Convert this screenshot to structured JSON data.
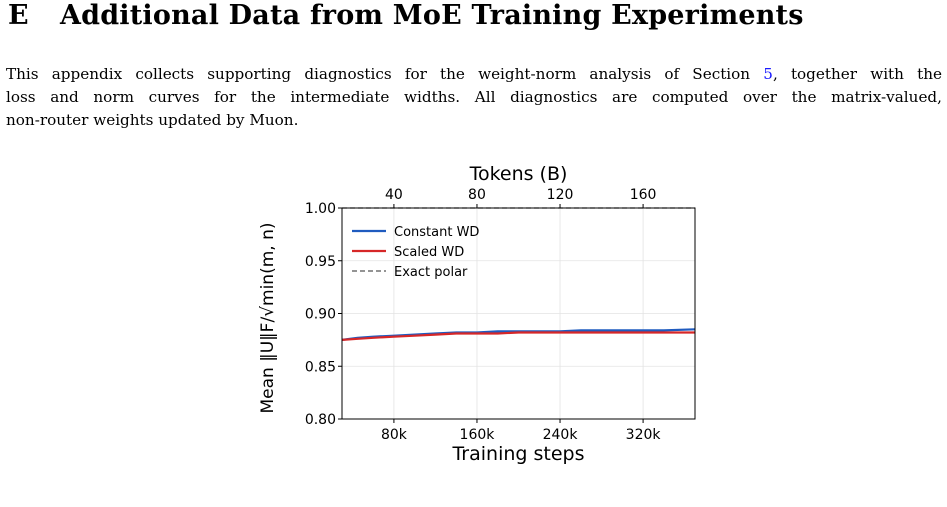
{
  "section": {
    "number": "E",
    "title": "Additional Data from MoE Training Experiments"
  },
  "paragraph": {
    "line1_pre": "This appendix collects supporting diagnostics for the weight-norm analysis of Section ",
    "section_ref": "5",
    "line1_post": ", together with the",
    "line2": "loss and norm curves for the intermediate widths.  All diagnostics are computed over the matrix-valued,",
    "line3": "non-router weights updated by Muon."
  },
  "chart_data": {
    "type": "line",
    "top_axis_label": "Tokens (B)",
    "top_ticks": [
      "40",
      "80",
      "120",
      "160"
    ],
    "xlabel": "Training steps",
    "x_tick_labels": [
      "80k",
      "160k",
      "240k",
      "320k"
    ],
    "x_ticks": [
      80000,
      160000,
      240000,
      320000
    ],
    "xlim": [
      30000,
      370000
    ],
    "ylabel": "Mean ‖U‖F/√min(m, n)",
    "y_tick_labels": [
      "1.00",
      "0.95",
      "0.90",
      "0.85",
      "0.80"
    ],
    "y_ticks": [
      1.0,
      0.95,
      0.9,
      0.85,
      0.8
    ],
    "ylim": [
      0.8,
      1.0
    ],
    "grid": true,
    "legend_position": "upper-left",
    "series": [
      {
        "name": "Constant WD",
        "color": "#1f5bbf",
        "style": "solid",
        "x": [
          30000,
          45000,
          60000,
          80000,
          100000,
          120000,
          140000,
          160000,
          180000,
          200000,
          220000,
          240000,
          260000,
          280000,
          300000,
          320000,
          340000,
          370000
        ],
        "y": [
          0.875,
          0.877,
          0.878,
          0.879,
          0.88,
          0.881,
          0.882,
          0.882,
          0.883,
          0.883,
          0.883,
          0.883,
          0.884,
          0.884,
          0.884,
          0.884,
          0.884,
          0.885
        ]
      },
      {
        "name": "Scaled WD",
        "color": "#d62728",
        "style": "solid",
        "x": [
          30000,
          45000,
          60000,
          80000,
          100000,
          120000,
          140000,
          160000,
          180000,
          200000,
          220000,
          240000,
          260000,
          280000,
          300000,
          320000,
          340000,
          370000
        ],
        "y": [
          0.875,
          0.876,
          0.877,
          0.878,
          0.879,
          0.88,
          0.881,
          0.881,
          0.881,
          0.882,
          0.882,
          0.882,
          0.882,
          0.882,
          0.882,
          0.882,
          0.882,
          0.882
        ]
      },
      {
        "name": "Exact polar",
        "color": "#555555",
        "style": "dashed",
        "x": [
          30000,
          370000
        ],
        "y": [
          1.0,
          1.0
        ]
      }
    ]
  }
}
